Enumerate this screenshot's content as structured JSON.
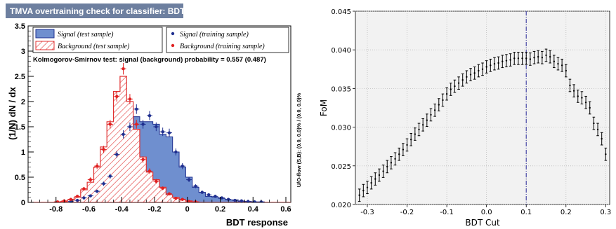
{
  "chart_data": [
    {
      "type": "histogram",
      "title": "TMVA overtraining check for classifier: BDT",
      "xlabel": "BDT response",
      "ylabel": "(1/N) dN / dx",
      "side_label": "U/O-flow (S,B): (0.0, 0.0)% / (0.0, 0.0)%",
      "ks_text": "Kolmogorov-Smirnov test: signal (background) probability = 0.557 (0.487)",
      "xlim": [
        -0.97,
        0.63
      ],
      "ylim": [
        0,
        3.5
      ],
      "xticks": [
        "-0.8",
        "-0.6",
        "-0.4",
        "-0.2",
        "0",
        "0.2",
        "0.4",
        "0.6"
      ],
      "yticks": [
        "0",
        "0.5",
        "1",
        "1.5",
        "2",
        "2.5",
        "3",
        "3.5"
      ],
      "bin_edges_start": -0.97,
      "bin_width": 0.04,
      "legend": {
        "signal_test": "Signal (test sample)",
        "background_test": "Background (test sample)",
        "signal_train": "Signal (training sample)",
        "background_train": "Background (training sample)"
      },
      "series": [
        {
          "name": "Signal (test sample)",
          "style": "filled-histogram",
          "color": "#6f8fcf",
          "values": [
            0,
            0,
            0,
            0,
            0,
            0,
            0.02,
            0.05,
            0.08,
            0.15,
            0.2,
            0.35,
            0.55,
            0.9,
            1.3,
            1.45,
            1.7,
            1.6,
            1.6,
            1.55,
            1.35,
            1.3,
            1.0,
            0.7,
            0.5,
            0.3,
            0.2,
            0.12,
            0.1,
            0.08,
            0.05,
            0.05,
            0.02,
            0.02,
            0.01,
            0.01,
            0,
            0,
            0,
            0
          ]
        },
        {
          "name": "Background (test sample)",
          "style": "hatched-histogram",
          "color": "#e03030",
          "values": [
            0,
            0,
            0,
            0,
            0.01,
            0.02,
            0.05,
            0.1,
            0.25,
            0.4,
            0.7,
            1.1,
            1.6,
            2.2,
            2.5,
            2.0,
            1.45,
            0.9,
            0.6,
            0.45,
            0.3,
            0.15,
            0.1,
            0.05,
            0.03,
            0.01,
            0,
            0,
            0,
            0,
            0,
            0,
            0,
            0,
            0,
            0,
            0,
            0,
            0,
            0
          ]
        },
        {
          "name": "Signal (training sample)",
          "style": "points",
          "color": "#1f2f8f",
          "values": [
            0,
            0,
            0,
            0,
            0,
            0,
            0.02,
            0.04,
            0.09,
            0.13,
            0.22,
            0.37,
            0.52,
            0.95,
            1.35,
            1.5,
            1.85,
            1.55,
            1.72,
            1.5,
            1.4,
            1.38,
            1.0,
            0.72,
            0.45,
            0.32,
            0.2,
            0.15,
            0.12,
            0.09,
            0.06,
            0.04,
            0.03,
            0.02,
            0.01,
            0.01,
            0,
            0,
            0,
            0
          ]
        },
        {
          "name": "Background (training sample)",
          "style": "points",
          "color": "#e02020",
          "values": [
            0,
            0,
            0,
            0,
            0.01,
            0.03,
            0.06,
            0.12,
            0.27,
            0.45,
            0.72,
            1.05,
            1.55,
            2.1,
            2.65,
            2.05,
            1.55,
            0.85,
            0.62,
            0.42,
            0.28,
            0.17,
            0.08,
            0.06,
            0.02,
            0.01,
            0,
            0,
            0,
            0,
            0,
            0,
            0,
            0,
            0,
            0,
            0,
            0,
            0,
            0
          ]
        }
      ]
    },
    {
      "type": "scatter",
      "xlabel": "BDT Cut",
      "ylabel": "FoM",
      "xlim": [
        -0.33,
        0.31
      ],
      "ylim": [
        0.02,
        0.045
      ],
      "xticks": [
        "-0.3",
        "-0.2",
        "-0.1",
        "0.0",
        "0.1",
        "0.2",
        "0.3"
      ],
      "yticks": [
        "0.020",
        "0.025",
        "0.030",
        "0.035",
        "0.040",
        "0.045"
      ],
      "grid": true,
      "vline": 0.1,
      "x": [
        -0.32,
        -0.31,
        -0.3,
        -0.29,
        -0.28,
        -0.27,
        -0.26,
        -0.25,
        -0.24,
        -0.23,
        -0.22,
        -0.21,
        -0.2,
        -0.19,
        -0.18,
        -0.17,
        -0.16,
        -0.15,
        -0.14,
        -0.13,
        -0.12,
        -0.11,
        -0.1,
        -0.09,
        -0.08,
        -0.07,
        -0.06,
        -0.05,
        -0.04,
        -0.03,
        -0.02,
        -0.01,
        0.0,
        0.01,
        0.02,
        0.03,
        0.04,
        0.05,
        0.06,
        0.07,
        0.08,
        0.09,
        0.1,
        0.11,
        0.12,
        0.13,
        0.14,
        0.15,
        0.16,
        0.17,
        0.18,
        0.19,
        0.2,
        0.21,
        0.22,
        0.23,
        0.24,
        0.25,
        0.26,
        0.27,
        0.28,
        0.29,
        0.3
      ],
      "y": [
        0.0212,
        0.0218,
        0.0222,
        0.0228,
        0.0233,
        0.0238,
        0.0243,
        0.0249,
        0.0254,
        0.0259,
        0.0265,
        0.0271,
        0.0277,
        0.0284,
        0.0291,
        0.0297,
        0.0303,
        0.0309,
        0.0316,
        0.0322,
        0.0329,
        0.0335,
        0.0343,
        0.0349,
        0.0353,
        0.0357,
        0.0361,
        0.0365,
        0.0368,
        0.037,
        0.0373,
        0.0375,
        0.0378,
        0.038,
        0.0382,
        0.0383,
        0.0385,
        0.0386,
        0.0387,
        0.0389,
        0.0389,
        0.0389,
        0.0389,
        0.0388,
        0.039,
        0.0391,
        0.039,
        0.0393,
        0.0391,
        0.0385,
        0.0382,
        0.038,
        0.0373,
        0.0354,
        0.0347,
        0.034,
        0.0338,
        0.0332,
        0.0325,
        0.0305,
        0.0297,
        0.0285,
        0.0265
      ],
      "error": 0.0008
    }
  ]
}
